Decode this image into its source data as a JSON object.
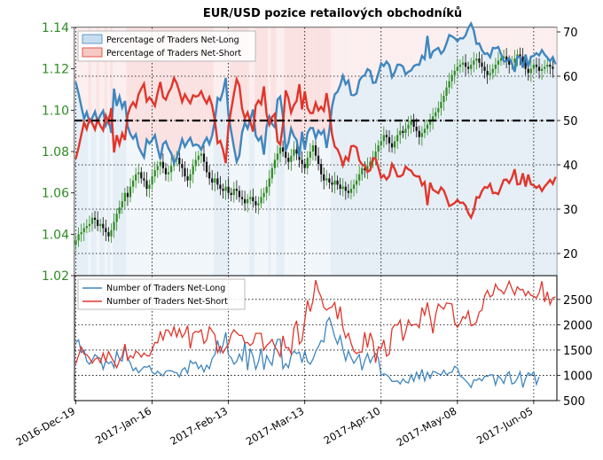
{
  "chart_data": [
    {
      "type": "candlestick+line",
      "title": "EUR/USD pozice retailových obchodníků",
      "y_left": {
        "ylim": [
          1.02,
          1.14
        ],
        "ticks": [
          "1.02",
          "1.04",
          "1.06",
          "1.08",
          "1.10",
          "1.12",
          "1.14"
        ],
        "color": "#2e8b22"
      },
      "y_right": {
        "ylim": [
          15,
          71
        ],
        "ticks": [
          "20",
          "30",
          "40",
          "50",
          "60",
          "70"
        ]
      },
      "reference_line": {
        "value": 50,
        "style": "dash-dot"
      },
      "legend": {
        "placement": "top-left",
        "entries": [
          {
            "name": "Percentage of Traders Net-Long",
            "color": "#3f86bf"
          },
          {
            "name": "Percentage of Traders Net-Short",
            "color": "#e0362b"
          }
        ]
      },
      "x": [
        0,
        1,
        2,
        3,
        4,
        5,
        6,
        7,
        8,
        9,
        10,
        11,
        12,
        13,
        14,
        15,
        16,
        17,
        18,
        19,
        20,
        21,
        22,
        23,
        24,
        25,
        26,
        27,
        28,
        29,
        30,
        31,
        32,
        33,
        34,
        35,
        36,
        37,
        38,
        39,
        40,
        41,
        42,
        43,
        44,
        45,
        46,
        47,
        48,
        49,
        50,
        51,
        52,
        53,
        54,
        55,
        56,
        57,
        58,
        59,
        60,
        61,
        62,
        63,
        64,
        65,
        66,
        67,
        68,
        69,
        70,
        71,
        72,
        73,
        74,
        75,
        76,
        77,
        78,
        79,
        80,
        81,
        82,
        83,
        84,
        85,
        86,
        87,
        88,
        89,
        90,
        91,
        92,
        93,
        94,
        95,
        96,
        97,
        98,
        99,
        100,
        101,
        102,
        103,
        104,
        105,
        106,
        107,
        108,
        109,
        110,
        111,
        112,
        113,
        114,
        115,
        116,
        117,
        118,
        119,
        120,
        121,
        122,
        123,
        124,
        125,
        126,
        127,
        128,
        129,
        130,
        131,
        132,
        133,
        134,
        135,
        136,
        137,
        138,
        139,
        140,
        141,
        142,
        143,
        144,
        145,
        146,
        147,
        148,
        149,
        150,
        151,
        152,
        153,
        154,
        155,
        156,
        157,
        158,
        159,
        160,
        161,
        162,
        163,
        164,
        165,
        166,
        167,
        168,
        169,
        170,
        171,
        172,
        173,
        174,
        175,
        176
      ],
      "price_close": [
        1.037,
        1.04,
        1.041,
        1.043,
        1.044,
        1.045,
        1.048,
        1.047,
        1.044,
        1.045,
        1.043,
        1.041,
        1.039,
        1.042,
        1.046,
        1.05,
        1.053,
        1.056,
        1.06,
        1.058,
        1.063,
        1.066,
        1.069,
        1.07,
        1.067,
        1.066,
        1.062,
        1.064,
        1.068,
        1.071,
        1.073,
        1.075,
        1.072,
        1.069,
        1.07,
        1.073,
        1.076,
        1.077,
        1.074,
        1.072,
        1.068,
        1.066,
        1.069,
        1.073,
        1.076,
        1.078,
        1.079,
        1.075,
        1.07,
        1.067,
        1.065,
        1.067,
        1.064,
        1.062,
        1.061,
        1.063,
        1.06,
        1.059,
        1.062,
        1.061,
        1.058,
        1.057,
        1.055,
        1.057,
        1.058,
        1.056,
        1.054,
        1.055,
        1.058,
        1.06,
        1.063,
        1.067,
        1.072,
        1.076,
        1.079,
        1.082,
        1.08,
        1.077,
        1.075,
        1.078,
        1.081,
        1.079,
        1.076,
        1.074,
        1.072,
        1.077,
        1.08,
        1.083,
        1.078,
        1.074,
        1.069,
        1.066,
        1.067,
        1.065,
        1.064,
        1.066,
        1.064,
        1.062,
        1.063,
        1.061,
        1.06,
        1.062,
        1.064,
        1.066,
        1.069,
        1.072,
        1.071,
        1.073,
        1.075,
        1.077,
        1.08,
        1.083,
        1.085,
        1.088,
        1.087,
        1.084,
        1.082,
        1.085,
        1.088,
        1.09,
        1.089,
        1.091,
        1.093,
        1.095,
        1.092,
        1.09,
        1.087,
        1.089,
        1.091,
        1.093,
        1.095,
        1.097,
        1.099,
        1.101,
        1.104,
        1.107,
        1.111,
        1.114,
        1.117,
        1.119,
        1.121,
        1.122,
        1.123,
        1.121,
        1.12,
        1.122,
        1.124,
        1.125,
        1.123,
        1.121,
        1.119,
        1.117,
        1.118,
        1.12,
        1.122,
        1.124,
        1.125,
        1.126,
        1.124,
        1.122,
        1.123,
        1.125,
        1.127,
        1.126,
        1.123,
        1.12,
        1.118,
        1.12,
        1.122,
        1.121,
        1.119,
        1.12,
        1.121,
        1.122,
        1.121,
        1.12
      ],
      "pct_net_long": [
        58.6,
        56.1,
        53.2,
        50.4,
        51.9,
        49.7,
        50.6,
        52.0,
        49.8,
        51.2,
        52.2,
        48.9,
        50.5,
        47.2,
        57.2,
        53.3,
        55.4,
        52.9,
        54.4,
        48.8,
        46.9,
        45.9,
        46.9,
        44.1,
        42.8,
        41.7,
        45.7,
        44.8,
        45.6,
        46.7,
        43.8,
        41.3,
        44.7,
        45.3,
        43.7,
        42.6,
        40.4,
        41.6,
        43.5,
        45.8,
        44.1,
        45.2,
        46.1,
        44.3,
        44.6,
        44.4,
        43.4,
        45.0,
        46.1,
        44.7,
        46.6,
        50.0,
        55.1,
        54.6,
        56.6,
        59.6,
        51.3,
        47.6,
        44.0,
        40.7,
        42.1,
        47.3,
        49.5,
        48.2,
        50.2,
        52.5,
        46.6,
        45.5,
        46.3,
        42.3,
        48.7,
        50.9,
        49.2,
        48.5,
        54.7,
        55.4,
        50.9,
        43.2,
        45.0,
        48.2,
        46.5,
        45.6,
        41.8,
        47.5,
        43.4,
        47.2,
        48.3,
        48.3,
        46.0,
        47.7,
        46.9,
        47.8,
        43.8,
        47.8,
        53.1,
        55.9,
        56.5,
        58.0,
        60.1,
        58.2,
        59.0,
        55.8,
        55.7,
        56.1,
        59.0,
        59.9,
        60.2,
        61.6,
        61.2,
        58.5,
        58.6,
        60.6,
        62.9,
        62.3,
        63.3,
        62.5,
        59.8,
        60.9,
        62.6,
        62.6,
        62.2,
        60.4,
        61.0,
        61.3,
        62.3,
        62.6,
        62.6,
        64.6,
        63.9,
        69.1,
        64.0,
        65.6,
        66.0,
        66.4,
        65.1,
        65.8,
        67.4,
        69.3,
        69.0,
        68.6,
        67.9,
        68.6,
        68.5,
        69.2,
        70.9,
        71.9,
        70.3,
        67.3,
        67.4,
        65.9,
        65.0,
        65.2,
        64.3,
        66.4,
        66.3,
        66.6,
        65.0,
        63.4,
        63.3,
        64.1,
        62.9,
        61.0,
        64.4,
        64.3,
        61.9,
        64.9,
        62.2,
        64.4,
        64.6,
        65.2,
        64.7,
        65.9,
        64.9,
        64.2,
        63.4,
        64.3,
        62.7
      ],
      "pct_net_short": [
        41.4,
        43.9,
        46.8,
        49.6,
        48.1,
        50.3,
        49.4,
        48.0,
        50.2,
        48.8,
        47.8,
        51.1,
        49.5,
        52.8,
        42.8,
        46.7,
        44.6,
        47.1,
        45.6,
        51.2,
        53.1,
        54.1,
        53.1,
        55.9,
        57.2,
        58.3,
        54.3,
        55.2,
        54.4,
        53.3,
        56.2,
        58.7,
        55.3,
        54.7,
        56.3,
        57.4,
        59.6,
        58.4,
        56.5,
        54.2,
        55.9,
        54.8,
        53.9,
        55.7,
        55.4,
        55.6,
        56.6,
        55.0,
        53.9,
        55.3,
        53.4,
        50.0,
        44.9,
        45.4,
        43.4,
        40.4,
        48.7,
        52.4,
        56.0,
        59.3,
        57.9,
        52.7,
        50.5,
        51.8,
        49.8,
        47.5,
        53.4,
        54.5,
        53.7,
        57.7,
        51.3,
        49.1,
        50.8,
        51.5,
        45.3,
        44.6,
        49.1,
        56.8,
        55.0,
        51.8,
        53.5,
        54.4,
        58.2,
        52.5,
        56.6,
        52.8,
        51.7,
        51.7,
        54.0,
        52.3,
        53.1,
        52.2,
        56.2,
        52.2,
        46.9,
        44.1,
        43.5,
        42.0,
        39.9,
        41.8,
        41.0,
        44.2,
        44.3,
        43.9,
        41.0,
        40.1,
        39.8,
        38.4,
        38.8,
        41.5,
        41.4,
        39.4,
        37.1,
        37.7,
        36.7,
        37.5,
        40.2,
        39.1,
        37.4,
        37.4,
        37.8,
        39.6,
        39.0,
        38.7,
        37.7,
        37.4,
        37.4,
        35.4,
        36.1,
        30.9,
        36.0,
        34.4,
        34.0,
        33.6,
        34.9,
        34.2,
        32.6,
        30.7,
        31.0,
        31.4,
        32.1,
        31.4,
        31.5,
        30.8,
        29.1,
        28.1,
        29.7,
        32.7,
        32.6,
        34.1,
        35.0,
        34.8,
        35.7,
        33.6,
        33.7,
        33.4,
        35.0,
        36.6,
        36.7,
        35.9,
        37.1,
        39.0,
        35.6,
        35.7,
        38.1,
        35.1,
        37.8,
        35.6,
        35.4,
        34.8,
        35.3,
        34.1,
        35.1,
        35.8,
        36.6,
        35.7,
        37.3
      ]
    },
    {
      "type": "line",
      "y_right": {
        "ticks": [
          "500",
          "1000",
          "1500",
          "2000",
          "2500"
        ]
      },
      "legend": {
        "placement": "top-left",
        "entries": [
          {
            "name": "Number of Traders Net-Long",
            "color": "#3f86bf"
          },
          {
            "name": "Number of Traders Net-Short",
            "color": "#e0362b"
          }
        ]
      },
      "x_ticks": [
        "2016-Dec-19",
        "2017-Jan-16",
        "2017-Feb-13",
        "2017-Mar-13",
        "2017-Apr-10",
        "2017-May-08",
        "2017-Jun-05"
      ],
      "series": [
        {
          "name": "Number of Traders Net-Long",
          "values": [
            1650,
            1700,
            1450,
            1500,
            1280,
            1220,
            1300,
            1410,
            1360,
            1330,
            1120,
            1290,
            1230,
            1270,
            1150,
            1470,
            1320,
            1280,
            1590,
            1350,
            1240,
            1090,
            1150,
            1050,
            1110,
            1170,
            1160,
            1190,
            1060,
            1020,
            1080,
            1030,
            990,
            1080,
            1090,
            1090,
            1060,
            1050,
            970,
            1110,
            1150,
            1040,
            1290,
            1230,
            1260,
            1130,
            1200,
            1070,
            1200,
            1130,
            1330,
            1410,
            1690,
            1450,
            1600,
            1850,
            1400,
            1350,
            1220,
            1270,
            1420,
            1290,
            1660,
            1100,
            1530,
            1380,
            1120,
            1270,
            1530,
            1110,
            1390,
            1280,
            1200,
            1540,
            1710,
            1710,
            1130,
            1230,
            1150,
            1390,
            1480,
            1430,
            1460,
            1250,
            1480,
            1270,
            1220,
            1320,
            1470,
            1570,
            1690,
            1660,
            2050,
            2140,
            1970,
            1760,
            1620,
            1780,
            1520,
            1290,
            1480,
            1350,
            1240,
            1320,
            1410,
            1100,
            1290,
            1430,
            1250,
            1360,
            1430,
            1340,
            1000,
            1030,
            1010,
            960,
            880,
            880,
            890,
            830,
            930,
            870,
            850,
            1010,
            880,
            1060,
            930,
            1120,
            890,
            1060,
            940,
            1080,
            1060,
            1030,
            1010,
            1100,
            1010,
            1050,
            1060,
            1180,
            1140,
            990,
            950,
            900,
            840,
            760,
            910,
            900,
            940,
            890,
            980,
            980,
            1010,
            1010,
            810,
            990,
            930,
            840,
            1010,
            1070,
            830,
            850,
            940,
            1070,
            760,
            940,
            1050,
            1000,
            1070,
            820,
            970
          ]
        },
        {
          "name": "Number of Traders Net-Short",
          "values": [
            1230,
            1390,
            1560,
            1420,
            1410,
            1340,
            1240,
            1320,
            1350,
            1250,
            1440,
            1280,
            1470,
            1360,
            1260,
            1150,
            1290,
            1380,
            1620,
            1300,
            1390,
            1340,
            1480,
            1440,
            1360,
            1440,
            1390,
            1380,
            1510,
            1650,
            1640,
            1860,
            1700,
            1900,
            1890,
            1780,
            1960,
            1760,
            1920,
            1750,
            1830,
            1980,
            1530,
            1830,
            1870,
            1850,
            1900,
            1630,
            1700,
            1960,
            1880,
            1800,
            1450,
            1570,
            1440,
            1540,
            1610,
            1810,
            1900,
            1840,
            1790,
            1790,
            1640,
            1650,
            1590,
            1640,
            1830,
            1830,
            1830,
            1500,
            1590,
            1640,
            1710,
            1570,
            1480,
            1370,
            1780,
            1540,
            1550,
            1430,
            1930,
            2080,
            1620,
            1690,
            2090,
            2480,
            2260,
            2470,
            2880,
            2670,
            2550,
            2340,
            2290,
            2330,
            2350,
            2440,
            2110,
            2360,
            1940,
            1740,
            1830,
            1630,
            1480,
            1430,
            1460,
            1460,
            1850,
            1550,
            1840,
            1680,
            1250,
            1560,
            1530,
            1700,
            1380,
            1420,
            1920,
            2000,
            1990,
            2090,
            1680,
            1860,
            2090,
            1980,
            2000,
            2010,
            1940,
            2340,
            2190,
            2440,
            2150,
            1830,
            2190,
            2410,
            2350,
            2310,
            2430,
            2420,
            2410,
            2040,
            1950,
            2030,
            2160,
            2120,
            2270,
            1980,
            2000,
            2050,
            2250,
            2290,
            2570,
            2680,
            2550,
            2590,
            2800,
            2700,
            2680,
            2610,
            2720,
            2860,
            2710,
            2590,
            2750,
            2690,
            2700,
            2570,
            2660,
            2580,
            2560,
            2530,
            2630,
            2860,
            2450,
            2650,
            2400,
            2530,
            2550
          ]
        }
      ]
    }
  ]
}
